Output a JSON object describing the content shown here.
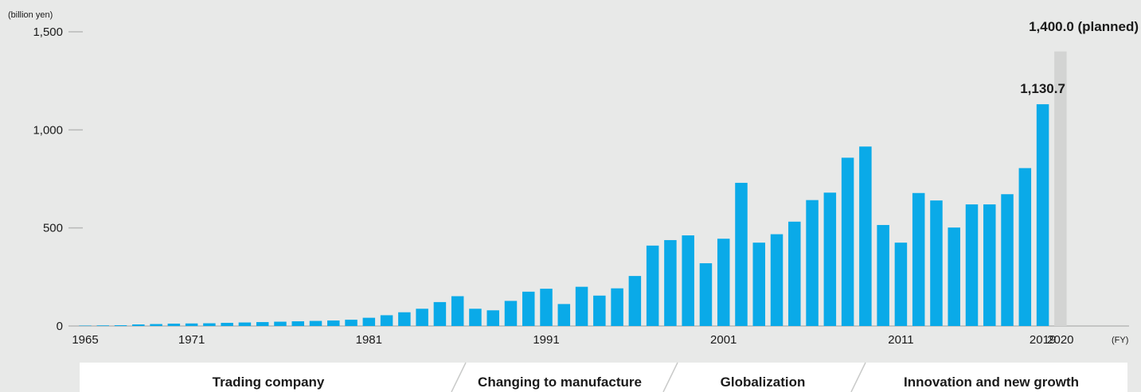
{
  "chart_data": {
    "type": "bar",
    "unit_label": "(billion yen)",
    "x_unit_label": "(FY)",
    "ylim": [
      0,
      1500
    ],
    "y_ticks": [
      {
        "value": 0,
        "label": "0"
      },
      {
        "value": 500,
        "label": "500"
      },
      {
        "value": 1000,
        "label": "1,000"
      },
      {
        "value": 1500,
        "label": "1,500"
      }
    ],
    "x_tick_labels": [
      {
        "year": 1965,
        "label": "1965"
      },
      {
        "year": 1971,
        "label": "1971"
      },
      {
        "year": 1981,
        "label": "1981"
      },
      {
        "year": 1991,
        "label": "1991"
      },
      {
        "year": 2001,
        "label": "2001"
      },
      {
        "year": 2011,
        "label": "2011"
      },
      {
        "year": 2019,
        "label": "2019"
      },
      {
        "year": 2020,
        "label": "2020"
      }
    ],
    "bar_color": "#0aaae8",
    "planned_color": "#d3d4d3",
    "series": [
      {
        "years": [
          1965,
          1966,
          1967,
          1968,
          1969,
          1970,
          1971,
          1972,
          1973,
          1974,
          1975,
          1976,
          1977,
          1978,
          1979,
          1980,
          1981,
          1982,
          1983,
          1984,
          1985,
          1986,
          1987,
          1988,
          1989,
          1990,
          1991,
          1992,
          1993,
          1994,
          1995,
          1996,
          1997,
          1998,
          1999,
          2000,
          2001,
          2002,
          2003,
          2004,
          2005,
          2006,
          2007,
          2008,
          2009,
          2010,
          2011,
          2012,
          2013,
          2014,
          2015,
          2016,
          2017,
          2018,
          2019
        ],
        "values": [
          2,
          3,
          4,
          8,
          10,
          12,
          13,
          14,
          16,
          18,
          20,
          22,
          24,
          26,
          28,
          32,
          42,
          55,
          70,
          88,
          122,
          152,
          88,
          80,
          128,
          175,
          190,
          112,
          200,
          155,
          192,
          255,
          410,
          438,
          462,
          320,
          445,
          730,
          425,
          468,
          532,
          642,
          680,
          858,
          915,
          515,
          425,
          678,
          640,
          502,
          620,
          620,
          672,
          805,
          1130.7
        ]
      },
      {
        "years": [
          2020
        ],
        "values": [
          1400.0
        ]
      }
    ],
    "annotations": [
      {
        "year": 2019,
        "value": 1130.7,
        "label": "1,130.7"
      },
      {
        "year": 2020,
        "value": 1400.0,
        "label": "1,400.0 (planned)"
      }
    ],
    "phases": [
      {
        "label": "Trading company",
        "start": 1965,
        "end": 1985
      },
      {
        "label": "Changing to manufacture",
        "start": 1986,
        "end": 1997
      },
      {
        "label": "Globalization",
        "start": 1998,
        "end": 2007
      },
      {
        "label": "Innovation and new growth",
        "start": 2008,
        "end": 2020
      }
    ]
  }
}
